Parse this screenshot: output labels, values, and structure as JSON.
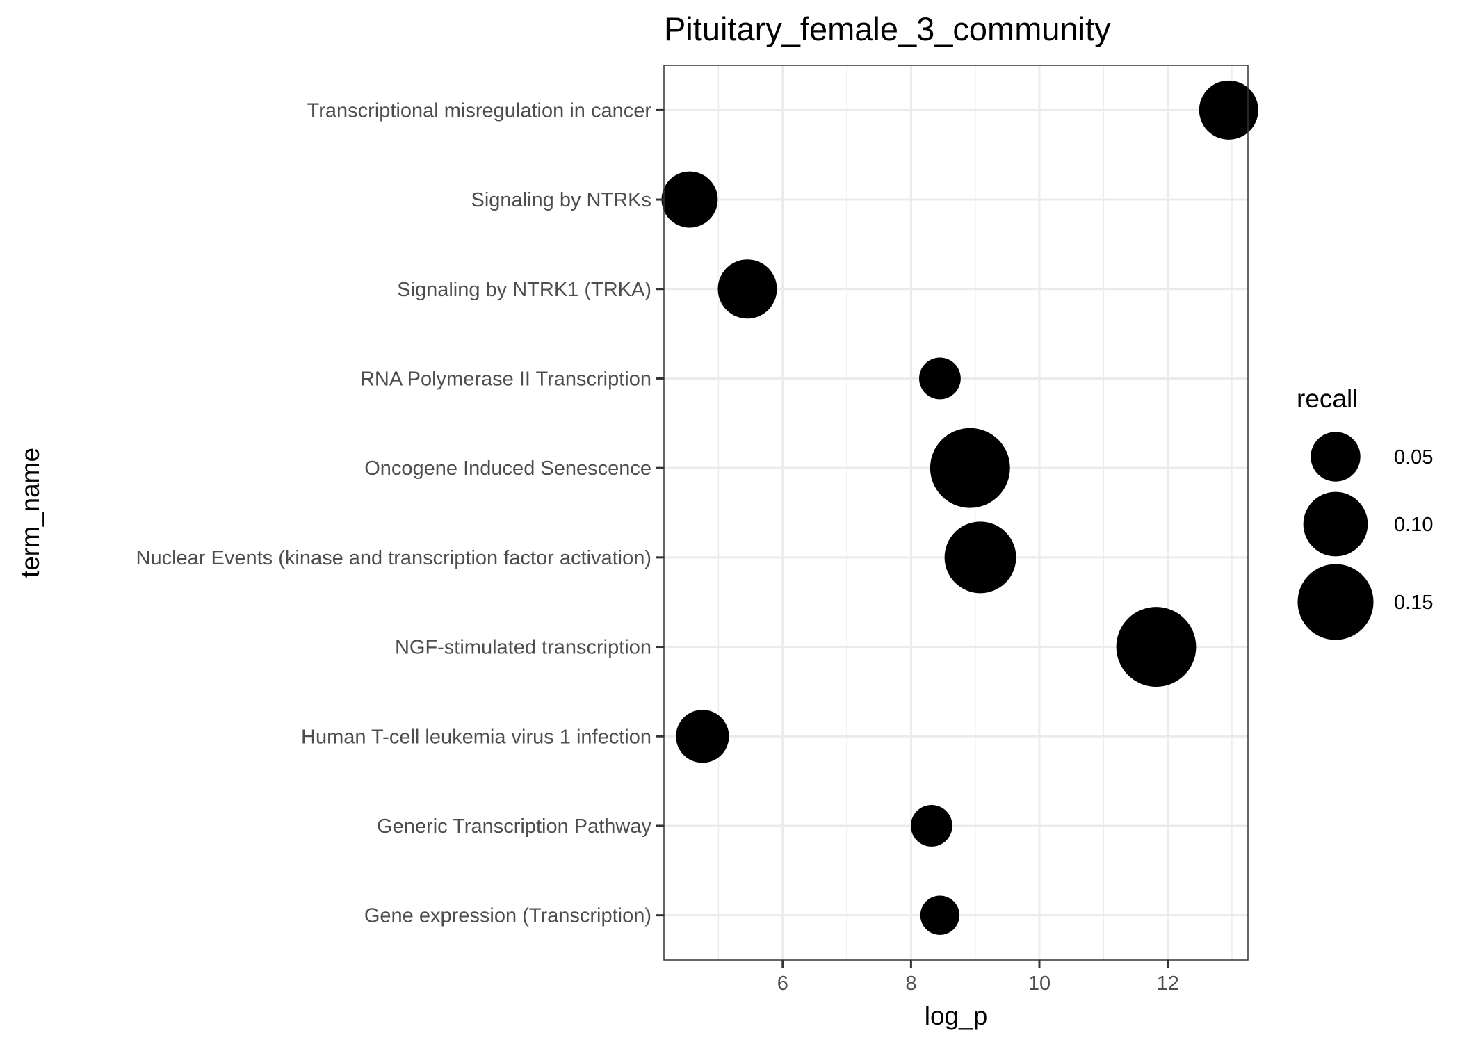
{
  "chart_data": {
    "type": "scatter",
    "title": "Pituitary_female_3_community",
    "xlabel": "log_p",
    "ylabel": "term_name",
    "xlim": [
      4.15,
      13.25
    ],
    "x_ticks": [
      6,
      8,
      10,
      12
    ],
    "x_minor_ticks": [
      5,
      7,
      9,
      11,
      13
    ],
    "grid": true,
    "categories": [
      "Transcriptional misregulation in cancer",
      "Signaling by NTRKs",
      "Signaling by NTRK1 (TRKA)",
      "RNA Polymerase II Transcription",
      "Oncogene Induced Senescence",
      "Nuclear Events (kinase and transcription factor activation)",
      "NGF-stimulated transcription",
      "Human T-cell leukemia virus 1 infection",
      "Generic Transcription Pathway",
      "Gene expression (Transcription)"
    ],
    "points": [
      {
        "term": "Transcriptional misregulation in cancer",
        "log_p": 12.95,
        "recall": 0.08
      },
      {
        "term": "Signaling by NTRKs",
        "log_p": 4.55,
        "recall": 0.07
      },
      {
        "term": "Signaling by NTRK1 (TRKA)",
        "log_p": 5.45,
        "recall": 0.08
      },
      {
        "term": "RNA Polymerase II Transcription",
        "log_p": 8.45,
        "recall": 0.03
      },
      {
        "term": "Oncogene Induced Senescence",
        "log_p": 8.92,
        "recall": 0.17
      },
      {
        "term": "Nuclear Events (kinase and transcription factor activation)",
        "log_p": 9.08,
        "recall": 0.13
      },
      {
        "term": "NGF-stimulated transcription",
        "log_p": 11.82,
        "recall": 0.17
      },
      {
        "term": "Human T-cell leukemia virus 1 infection",
        "log_p": 4.75,
        "recall": 0.06
      },
      {
        "term": "Generic Transcription Pathway",
        "log_p": 8.32,
        "recall": 0.03
      },
      {
        "term": "Gene expression (Transcription)",
        "log_p": 8.45,
        "recall": 0.025
      }
    ],
    "point_color": "#000000",
    "legend": {
      "title": "recall",
      "placement": "right",
      "entries": [
        {
          "label": "0.05",
          "value": 0.05
        },
        {
          "label": "0.10",
          "value": 0.1
        },
        {
          "label": "0.15",
          "value": 0.15
        }
      ]
    }
  }
}
